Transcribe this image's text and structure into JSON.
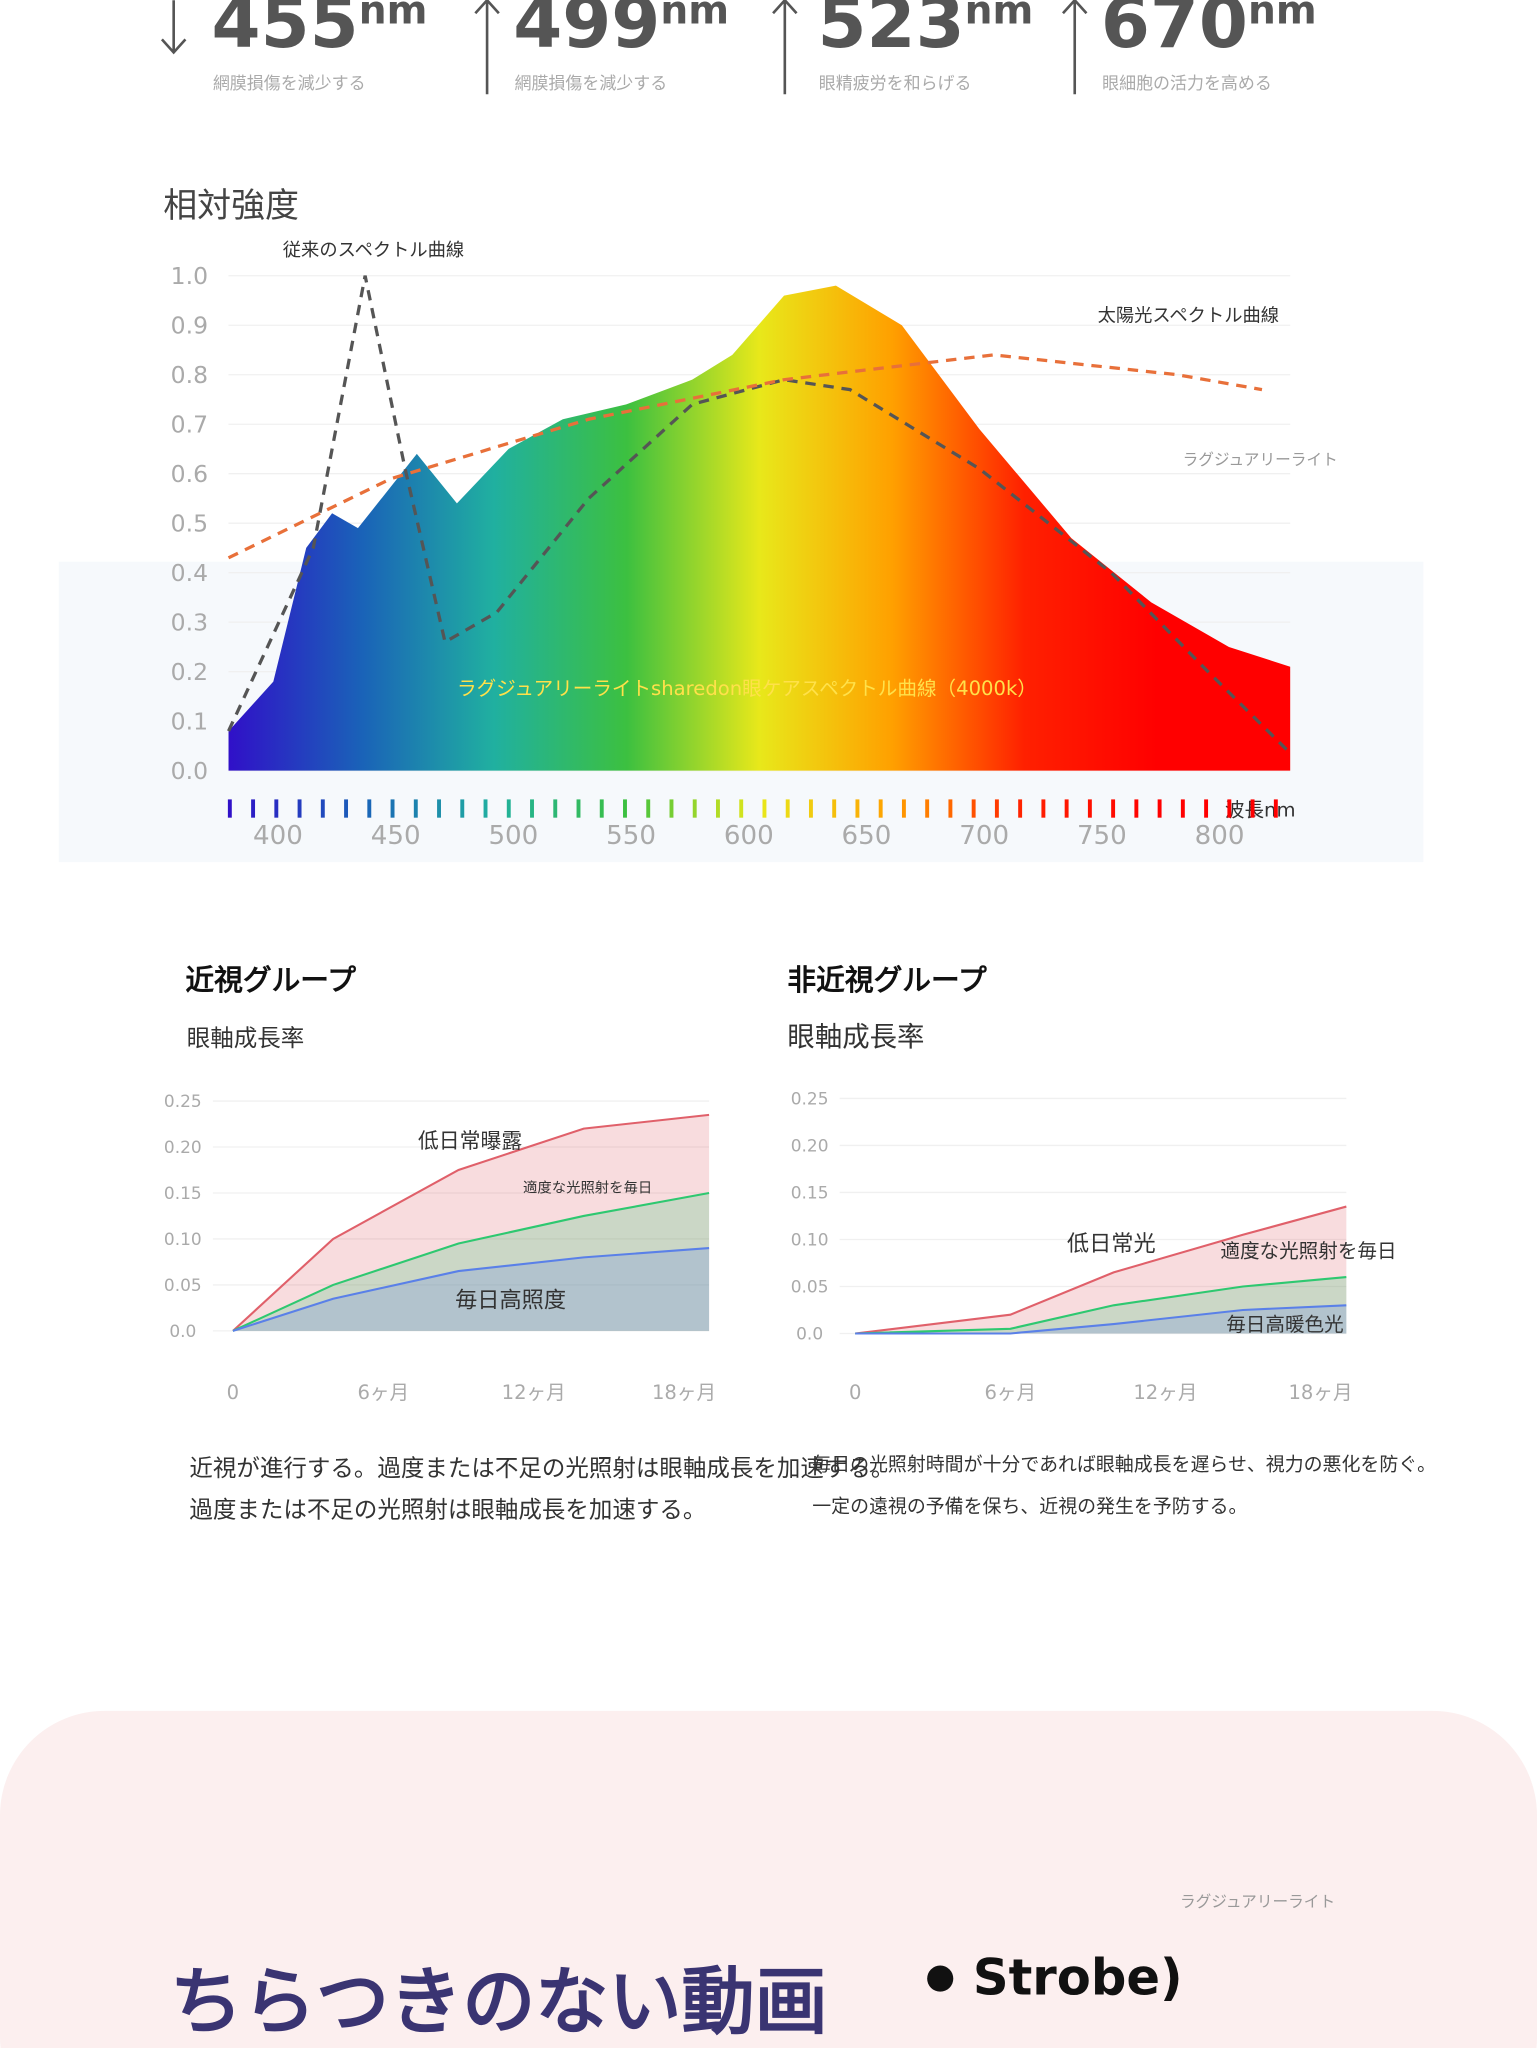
{
  "header": {
    "items": [
      {
        "value": 455,
        "unit": "nm",
        "caption": "網膜損傷を減少する"
      },
      {
        "value": 499,
        "unit": "nm",
        "caption": "網膜損傷を減少する"
      },
      {
        "value": 523,
        "unit": "nm",
        "caption": "眼精疲労を和らげる"
      },
      {
        "value": 670,
        "unit": "nm",
        "caption": "眼細胞の活力を高める"
      }
    ]
  },
  "chart_data": [
    {
      "type": "line",
      "ylabel": "相対強度",
      "xlabel": "波長nm",
      "annotations": [
        "ラグジュアリーライト"
      ],
      "xlim": [
        379,
        830
      ],
      "ylim": [
        0,
        1
      ],
      "xticks": [
        400,
        450,
        500,
        550,
        600,
        650,
        700,
        750,
        800
      ],
      "yticks": [
        {
          "value": 0,
          "label": "0.0"
        },
        0.1,
        0.2,
        0.3,
        0.4,
        0.5,
        0.6,
        0.7,
        0.8,
        0.9,
        {
          "value": 1,
          "label": "1.0"
        }
      ],
      "gradient": [
        "#3010c8",
        "#1a62b8",
        "#20b0a0",
        "#3cc040",
        "#e8e81a",
        "#ffa000",
        "#ff2000",
        "#ff0000",
        "#ff0000"
      ],
      "series": [
        {
          "name": "ラグジュアリーライトsharedon眼ケアスペクトル曲線（4000k）",
          "kind": "area",
          "color": "#ffe14a",
          "x": [
            379,
            398,
            412,
            423,
            434,
            459,
            476,
            498,
            521,
            548,
            576,
            593,
            615,
            637,
            665,
            698,
            737,
            771,
            804,
            830
          ],
          "values": [
            0.08,
            0.18,
            0.45,
            0.52,
            0.49,
            0.64,
            0.54,
            0.65,
            0.71,
            0.74,
            0.79,
            0.84,
            0.96,
            0.98,
            0.9,
            0.69,
            0.47,
            0.34,
            0.25,
            0.21
          ]
        },
        {
          "name": "従来のスペクトル曲線",
          "kind": "line",
          "dashed": true,
          "color": "#555555",
          "x": [
            379,
            415,
            437,
            454,
            471,
            493,
            532,
            576,
            615,
            643,
            698,
            754,
            793,
            829
          ],
          "values": [
            0.08,
            0.45,
            1.0,
            0.61,
            0.26,
            0.32,
            0.55,
            0.74,
            0.79,
            0.77,
            0.61,
            0.4,
            0.21,
            0.04
          ]
        },
        {
          "name": "太陽光スペクトル曲線",
          "kind": "line",
          "dashed": true,
          "color": "#e8703a",
          "x": [
            379,
            448,
            532,
            615,
            704,
            782,
            818
          ],
          "values": [
            0.43,
            0.59,
            0.71,
            0.79,
            0.84,
            0.8,
            0.77
          ]
        }
      ]
    },
    {
      "type": "line",
      "title": "近視グループ",
      "subtitle": "眼軸成長率",
      "xlim": [
        -0.8,
        19
      ],
      "ylim": [
        0,
        0.25
      ],
      "xticks": [
        0,
        {
          "value": 6,
          "label": "6ヶ月"
        },
        {
          "value": 12,
          "label": "12ヶ月"
        },
        {
          "value": 18,
          "label": "18ヶ月"
        }
      ],
      "yticks": [
        {
          "value": 0,
          "label": "0.0"
        },
        0.05,
        {
          "value": 0.1,
          "label": "0.10"
        },
        0.15,
        {
          "value": 0.2,
          "label": "0.20"
        },
        0.25
      ],
      "x": [
        0,
        4,
        9,
        14,
        19
      ],
      "series": [
        {
          "name": "低日常曝露",
          "kind": "area",
          "color": "#e0606a",
          "values": [
            0,
            0.1,
            0.175,
            0.22,
            0.235
          ]
        },
        {
          "name": "適度な光照射を毎日",
          "kind": "area",
          "color": "#2ec870",
          "values": [
            0,
            0.05,
            0.095,
            0.125,
            0.15
          ]
        },
        {
          "name": "毎日高照度",
          "kind": "area",
          "color": "#5a80e8",
          "values": [
            0,
            0.035,
            0.065,
            0.08,
            0.09
          ]
        }
      ]
    },
    {
      "type": "line",
      "title": "非近視グループ",
      "subtitle": "眼軸成長率",
      "xlim": [
        -0.6,
        19
      ],
      "ylim": [
        0,
        0.25
      ],
      "xticks": [
        0,
        {
          "value": 6,
          "label": "6ヶ月"
        },
        {
          "value": 12,
          "label": "12ヶ月"
        },
        {
          "value": 18,
          "label": "18ヶ月"
        }
      ],
      "yticks": [
        {
          "value": 0,
          "label": "0.0"
        },
        0.05,
        {
          "value": 0.1,
          "label": "0.10"
        },
        0.15,
        {
          "value": 0.2,
          "label": "0.20"
        },
        0.25
      ],
      "x": [
        0,
        6,
        10,
        15,
        19
      ],
      "series": [
        {
          "name": "低日常光",
          "kind": "area",
          "color": "#e0606a",
          "values": [
            0,
            0.02,
            0.065,
            0.105,
            0.135
          ]
        },
        {
          "name": "適度な光照射を毎日",
          "kind": "area",
          "color": "#2ec870",
          "values": [
            0,
            0.005,
            0.03,
            0.05,
            0.06
          ]
        },
        {
          "name": "毎日高暖色光",
          "kind": "area",
          "color": "#5a80e8",
          "values": [
            0,
            0,
            0.01,
            0.025,
            0.03
          ]
        }
      ]
    }
  ],
  "paragraphs": {
    "left": [
      "近視が進行する。過度または不足の光照射は眼軸成長を加速する。",
      "過度または不足の光照射は眼軸成長を加速する。"
    ],
    "right": [
      "毎日の光照射時間が十分であれば眼軸成長を遅らせ、視力の悪化を防ぐ。",
      "一定の遠視の予備を保ち、近視の発生を予防する。"
    ]
  },
  "section": {
    "caption": "ラグジュアリーライト",
    "heading": "ちらつきのない動画",
    "strobe": "Strobe)"
  }
}
